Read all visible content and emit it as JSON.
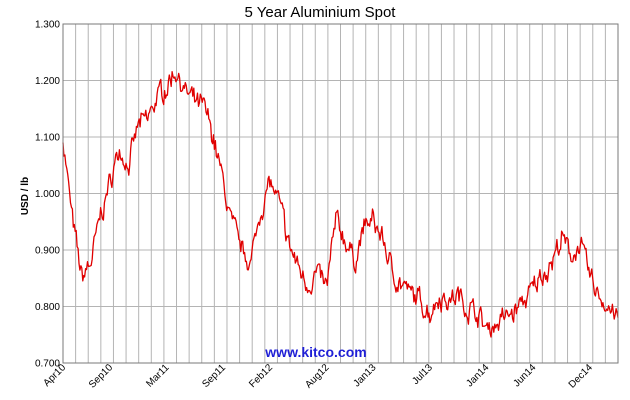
{
  "chart_data": {
    "type": "line",
    "title": "5 Year Aluminium Spot",
    "ylabel": "USD / lb",
    "xlabel": "",
    "ylim": [
      0.7,
      1.3
    ],
    "yticks": [
      "0.700",
      "0.800",
      "0.900",
      "1.000",
      "1.100",
      "1.200",
      "1.300"
    ],
    "xticks": [
      "Apr10",
      "Sep10",
      "Mar11",
      "Sep11",
      "Feb12",
      "Aug12",
      "Jan13",
      "Jul13",
      "Jan14",
      "Jun14",
      "Dec14"
    ],
    "grid": true,
    "line_color": "#e00000",
    "series": [
      {
        "x": [
          "Apr10",
          "May10",
          "Jun10",
          "Jul10",
          "Aug10",
          "Sep10",
          "Oct10",
          "Nov10",
          "Dec10",
          "Jan11",
          "Feb11",
          "Mar11",
          "Apr11",
          "May11",
          "Jun11",
          "Jul11",
          "Aug11",
          "Sep11",
          "Oct11",
          "Nov11",
          "Dec11",
          "Jan12",
          "Feb12",
          "Mar12",
          "Apr12",
          "May12",
          "Jun12",
          "Jul12",
          "Aug12",
          "Sep12",
          "Oct12",
          "Nov12",
          "Dec12",
          "Jan13",
          "Feb13",
          "Mar13",
          "Apr13",
          "May13",
          "Jun13",
          "Jul13",
          "Aug13",
          "Sep13",
          "Oct13",
          "Nov13",
          "Dec13",
          "Jan14",
          "Feb14",
          "Mar14",
          "Apr14",
          "May14",
          "Jun14",
          "Jul14",
          "Aug14",
          "Sep14",
          "Oct14",
          "Nov14",
          "Dec14",
          "Jan15",
          "Feb15",
          "Mar15"
        ],
        "values": [
          1.1,
          0.95,
          0.85,
          0.88,
          0.96,
          1.02,
          1.08,
          1.05,
          1.12,
          1.13,
          1.17,
          1.19,
          1.22,
          1.18,
          1.16,
          1.15,
          1.1,
          1.02,
          0.94,
          0.9,
          0.88,
          0.97,
          1.02,
          0.98,
          0.91,
          0.87,
          0.84,
          0.86,
          0.83,
          0.95,
          0.92,
          0.88,
          0.94,
          0.95,
          0.92,
          0.86,
          0.84,
          0.82,
          0.81,
          0.79,
          0.82,
          0.81,
          0.82,
          0.8,
          0.79,
          0.76,
          0.77,
          0.78,
          0.79,
          0.81,
          0.83,
          0.86,
          0.88,
          0.92,
          0.89,
          0.91,
          0.85,
          0.82,
          0.8,
          0.78
        ]
      }
    ]
  },
  "watermark": "www.kitco.com"
}
